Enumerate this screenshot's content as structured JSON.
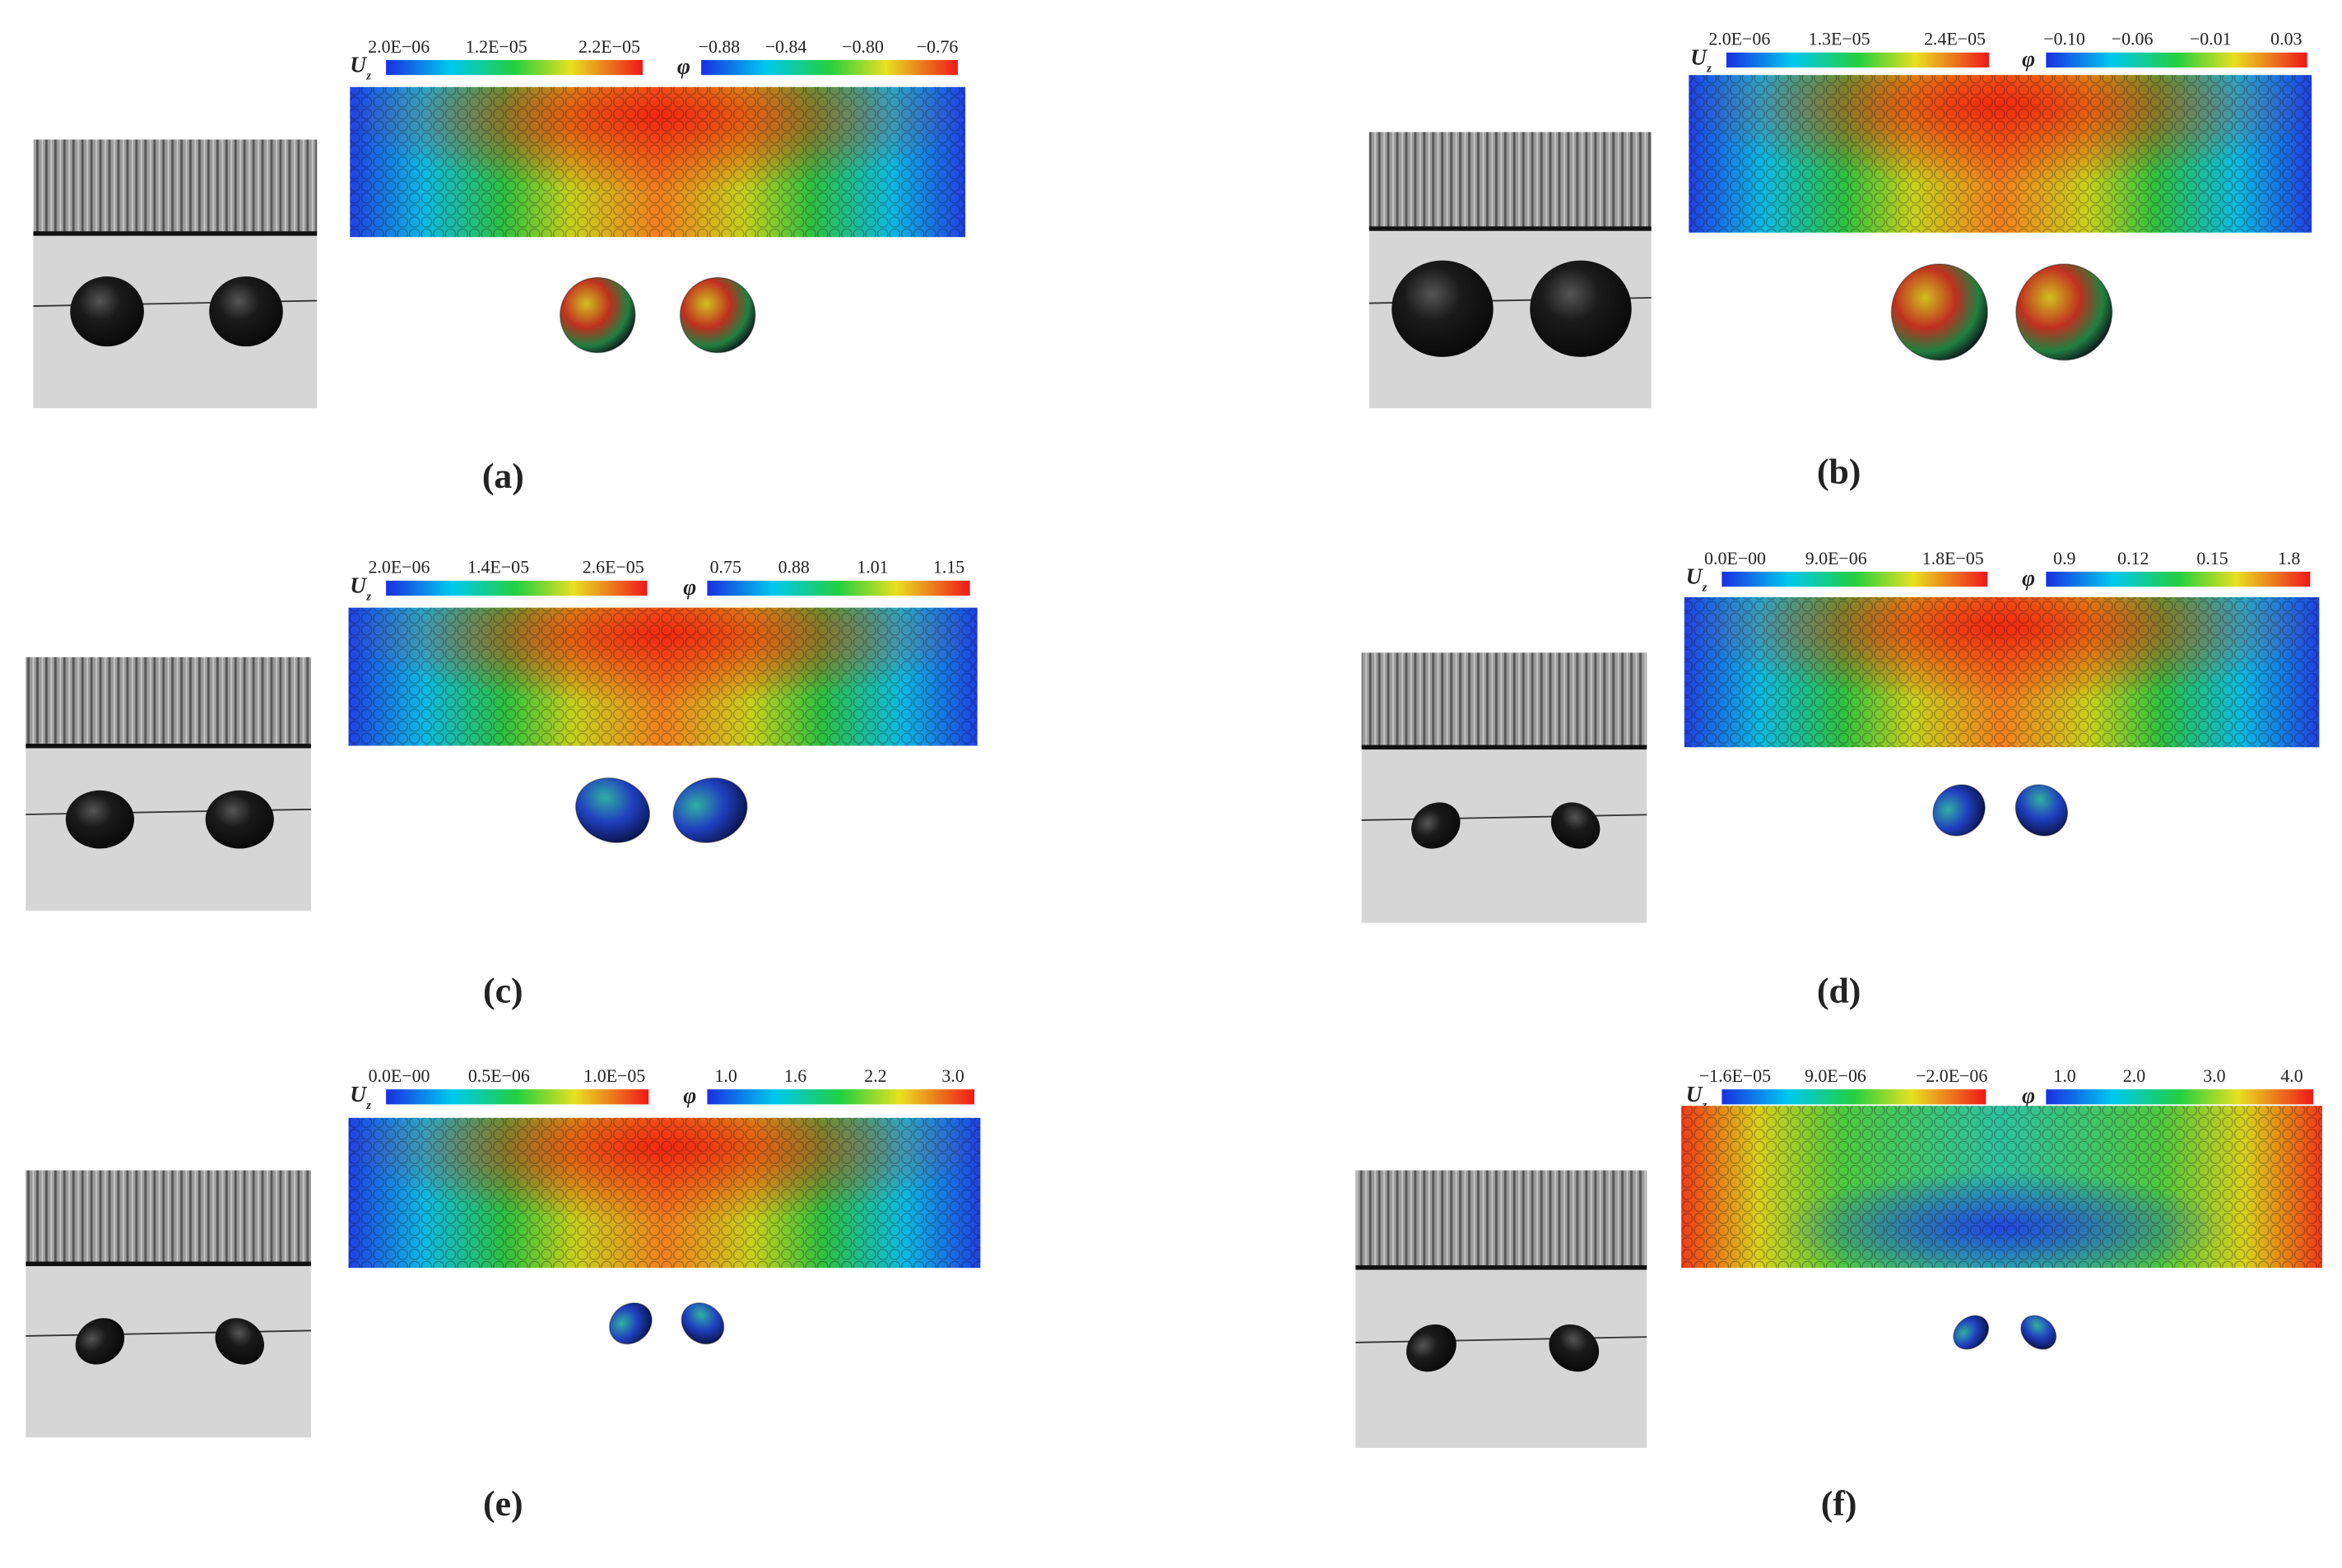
{
  "panels": [
    {
      "caption": "(a)",
      "uz_symbol": "U",
      "uz_subscript": "z",
      "uz_ticks": [
        "2.0E−06",
        "1.2E−05",
        "2.2E−05"
      ],
      "phi_symbol": "φ",
      "phi_ticks": [
        "−0.88",
        "−0.84",
        "−0.80",
        "−0.76"
      ]
    },
    {
      "caption": "(b)",
      "uz_symbol": "U",
      "uz_subscript": "z",
      "uz_ticks": [
        "2.0E−06",
        "1.3E−05",
        "2.4E−05"
      ],
      "phi_symbol": "φ",
      "phi_ticks": [
        "−0.10",
        "−0.06",
        "−0.01",
        "0.03"
      ]
    },
    {
      "caption": "(c)",
      "uz_symbol": "U",
      "uz_subscript": "z",
      "uz_ticks": [
        "2.0E−06",
        "1.4E−05",
        "2.6E−05"
      ],
      "phi_symbol": "φ",
      "phi_ticks": [
        "0.75",
        "0.88",
        "1.01",
        "1.15"
      ]
    },
    {
      "caption": "(d)",
      "uz_symbol": "U",
      "uz_subscript": "z",
      "uz_ticks": [
        "0.0E−00",
        "9.0E−06",
        "1.8E−05"
      ],
      "phi_symbol": "φ",
      "phi_ticks": [
        "0.9",
        "0.12",
        "0.15",
        "1.8"
      ]
    },
    {
      "caption": "(e)",
      "uz_symbol": "U",
      "uz_subscript": "z",
      "uz_ticks": [
        "0.0E−00",
        "0.5E−06",
        "1.0E−05"
      ],
      "phi_symbol": "φ",
      "phi_ticks": [
        "1.0",
        "1.6",
        "2.2",
        "3.0"
      ]
    },
    {
      "caption": "(f)",
      "uz_symbol": "U",
      "uz_subscript": "z",
      "uz_ticks": [
        "−1.6E−05",
        "9.0E−06",
        "−2.0E−06"
      ],
      "phi_symbol": "φ",
      "phi_ticks": [
        "1.0",
        "2.0",
        "3.0",
        "4.0"
      ]
    }
  ]
}
